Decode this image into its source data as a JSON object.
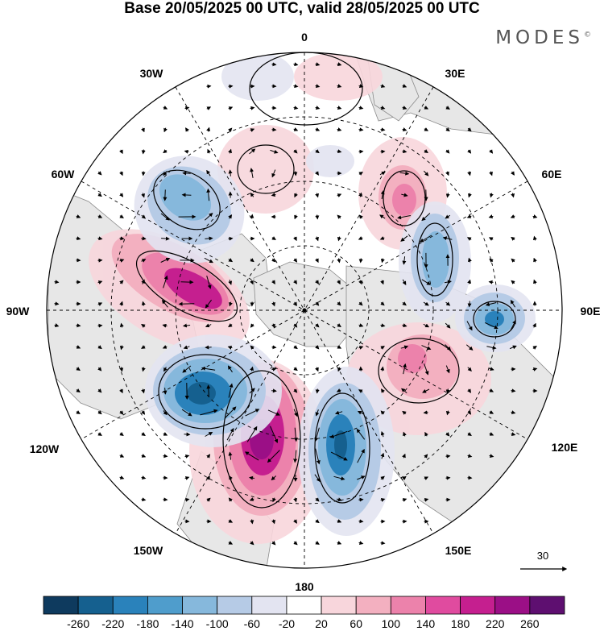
{
  "title": "Base 20/05/2025 00 UTC, valid 28/05/2025 00 UTC",
  "brand": "MODES",
  "brand_mark": "©",
  "labels": {
    "top": "0",
    "bottom": "180",
    "left": "90W",
    "right": "90E",
    "nw1": "30W",
    "nw2": "60W",
    "ne1": "30E",
    "ne2": "60E",
    "sw1": "120W",
    "sw2": "150W",
    "se1": "120E",
    "se2": "150E"
  },
  "vector_scale": {
    "label": "30"
  },
  "colorbar": {
    "colors": [
      "#0e3a5e",
      "#15608f",
      "#2a82bb",
      "#4f9dcc",
      "#86b8dc",
      "#b6cbe6",
      "#e3e4f1",
      "#ffffff",
      "#f8d6dc",
      "#f3b0c0",
      "#ec82ab",
      "#e04b9f",
      "#c51f8f",
      "#9b0f86",
      "#5e0f70"
    ],
    "ticks": [
      "-260",
      "-220",
      "-180",
      "-140",
      "-100",
      "-60",
      "-20",
      "20",
      "60",
      "100",
      "140",
      "180",
      "220",
      "260"
    ]
  }
}
